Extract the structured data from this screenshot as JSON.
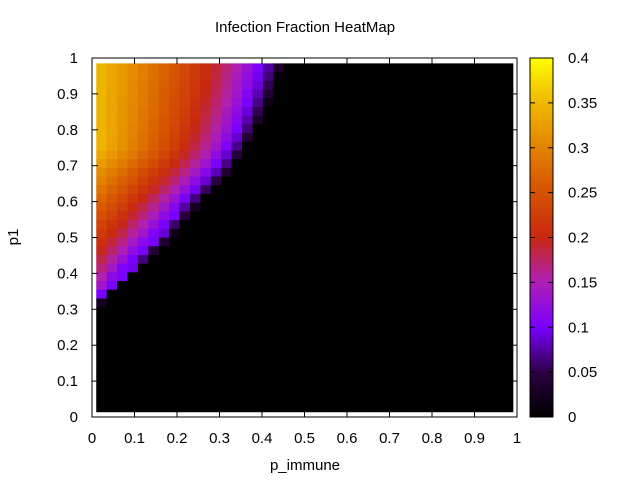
{
  "chart_data": {
    "type": "heatmap",
    "title": "Infection Fraction HeatMap",
    "xlabel": "p_immune",
    "ylabel": "p1",
    "xlim": [
      0,
      1
    ],
    "ylim": [
      0,
      1
    ],
    "x_ticks": [
      "0",
      "0.1",
      "0.2",
      "0.3",
      "0.4",
      "0.5",
      "0.6",
      "0.7",
      "0.8",
      "0.9",
      "1"
    ],
    "y_ticks": [
      "0",
      "0.1",
      "0.2",
      "0.3",
      "0.4",
      "0.5",
      "0.6",
      "0.7",
      "0.8",
      "0.9",
      "1"
    ],
    "colorbar": {
      "range": [
        0,
        0.4
      ],
      "ticks": [
        "0",
        "0.05",
        "0.1",
        "0.15",
        "0.2",
        "0.25",
        "0.3",
        "0.35",
        "0.4"
      ]
    },
    "colormap": "gnuplot-hot (black-purple-red-orange-yellow)",
    "grid_resolution": {
      "x_cells": 40,
      "y_cells": 40
    },
    "pattern": {
      "description": "Non-zero infection fraction only in upper-left region; zero elsewhere.",
      "threshold_curve": [
        {
          "p1": 0.3,
          "p_immune_boundary": 0.0
        },
        {
          "p1": 0.4,
          "p_immune_boundary": 0.09
        },
        {
          "p1": 0.5,
          "p_immune_boundary": 0.18
        },
        {
          "p1": 0.6,
          "p_immune_boundary": 0.25
        },
        {
          "p1": 0.7,
          "p_immune_boundary": 0.33
        },
        {
          "p1": 0.8,
          "p_immune_boundary": 0.38
        },
        {
          "p1": 0.9,
          "p_immune_boundary": 0.42
        },
        {
          "p1": 1.0,
          "p_immune_boundary": 0.45
        }
      ],
      "max_value_top_left": 0.35
    }
  }
}
